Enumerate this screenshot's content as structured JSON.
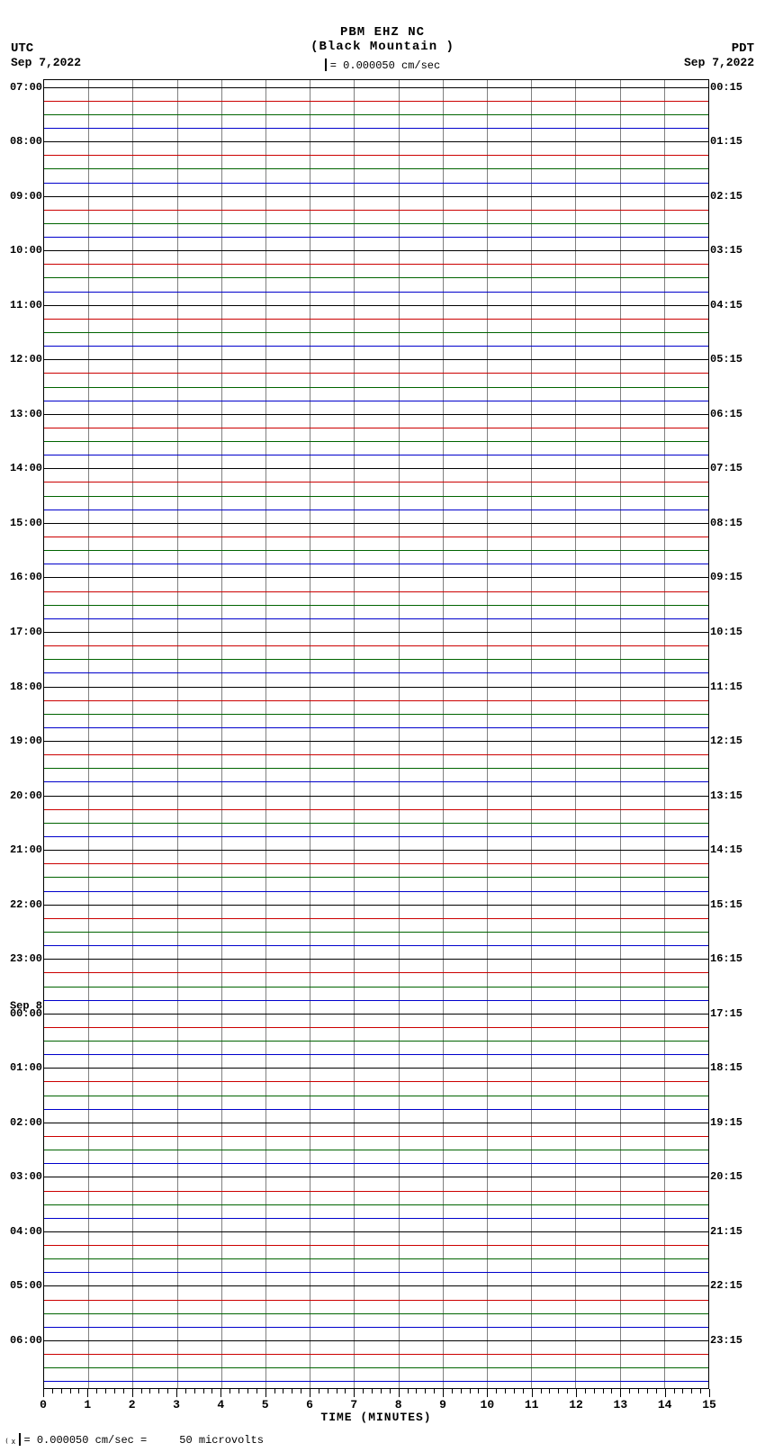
{
  "header": {
    "station_code": "PBM EHZ NC",
    "station_name": "(Black Mountain )",
    "scale_text": "= 0.000050 cm/sec"
  },
  "tz_left": {
    "label": "UTC",
    "date": "Sep 7,2022"
  },
  "tz_right": {
    "label": "PDT",
    "date": "Sep 7,2022"
  },
  "footer": {
    "text_left": "= 0.000050 cm/sec =",
    "text_right": "50 microvolts"
  },
  "xaxis": {
    "label": "TIME (MINUTES)",
    "min": 0,
    "max": 15,
    "major_step": 1,
    "minor_per_major": 5
  },
  "plot": {
    "n_traces": 96,
    "trace_colors": [
      "#000000",
      "#cc0000",
      "#006400",
      "#0000cc"
    ],
    "grid_color": "#808080",
    "background": "#ffffff",
    "left_labels": [
      {
        "i": 0,
        "text": "07:00"
      },
      {
        "i": 4,
        "text": "08:00"
      },
      {
        "i": 8,
        "text": "09:00"
      },
      {
        "i": 12,
        "text": "10:00"
      },
      {
        "i": 16,
        "text": "11:00"
      },
      {
        "i": 20,
        "text": "12:00"
      },
      {
        "i": 24,
        "text": "13:00"
      },
      {
        "i": 28,
        "text": "14:00"
      },
      {
        "i": 32,
        "text": "15:00"
      },
      {
        "i": 36,
        "text": "16:00"
      },
      {
        "i": 40,
        "text": "17:00"
      },
      {
        "i": 44,
        "text": "18:00"
      },
      {
        "i": 48,
        "text": "19:00"
      },
      {
        "i": 52,
        "text": "20:00"
      },
      {
        "i": 56,
        "text": "21:00"
      },
      {
        "i": 60,
        "text": "22:00"
      },
      {
        "i": 64,
        "text": "23:00"
      },
      {
        "i": 68,
        "text": "00:00",
        "day": "Sep 8"
      },
      {
        "i": 72,
        "text": "01:00"
      },
      {
        "i": 76,
        "text": "02:00"
      },
      {
        "i": 80,
        "text": "03:00"
      },
      {
        "i": 84,
        "text": "04:00"
      },
      {
        "i": 88,
        "text": "05:00"
      },
      {
        "i": 92,
        "text": "06:00"
      }
    ],
    "right_labels": [
      {
        "i": 0,
        "text": "00:15"
      },
      {
        "i": 4,
        "text": "01:15"
      },
      {
        "i": 8,
        "text": "02:15"
      },
      {
        "i": 12,
        "text": "03:15"
      },
      {
        "i": 16,
        "text": "04:15"
      },
      {
        "i": 20,
        "text": "05:15"
      },
      {
        "i": 24,
        "text": "06:15"
      },
      {
        "i": 28,
        "text": "07:15"
      },
      {
        "i": 32,
        "text": "08:15"
      },
      {
        "i": 36,
        "text": "09:15"
      },
      {
        "i": 40,
        "text": "10:15"
      },
      {
        "i": 44,
        "text": "11:15"
      },
      {
        "i": 48,
        "text": "12:15"
      },
      {
        "i": 52,
        "text": "13:15"
      },
      {
        "i": 56,
        "text": "14:15"
      },
      {
        "i": 60,
        "text": "15:15"
      },
      {
        "i": 64,
        "text": "16:15"
      },
      {
        "i": 68,
        "text": "17:15"
      },
      {
        "i": 72,
        "text": "18:15"
      },
      {
        "i": 76,
        "text": "19:15"
      },
      {
        "i": 80,
        "text": "20:15"
      },
      {
        "i": 84,
        "text": "21:15"
      },
      {
        "i": 88,
        "text": "22:15"
      },
      {
        "i": 92,
        "text": "23:15"
      }
    ]
  }
}
